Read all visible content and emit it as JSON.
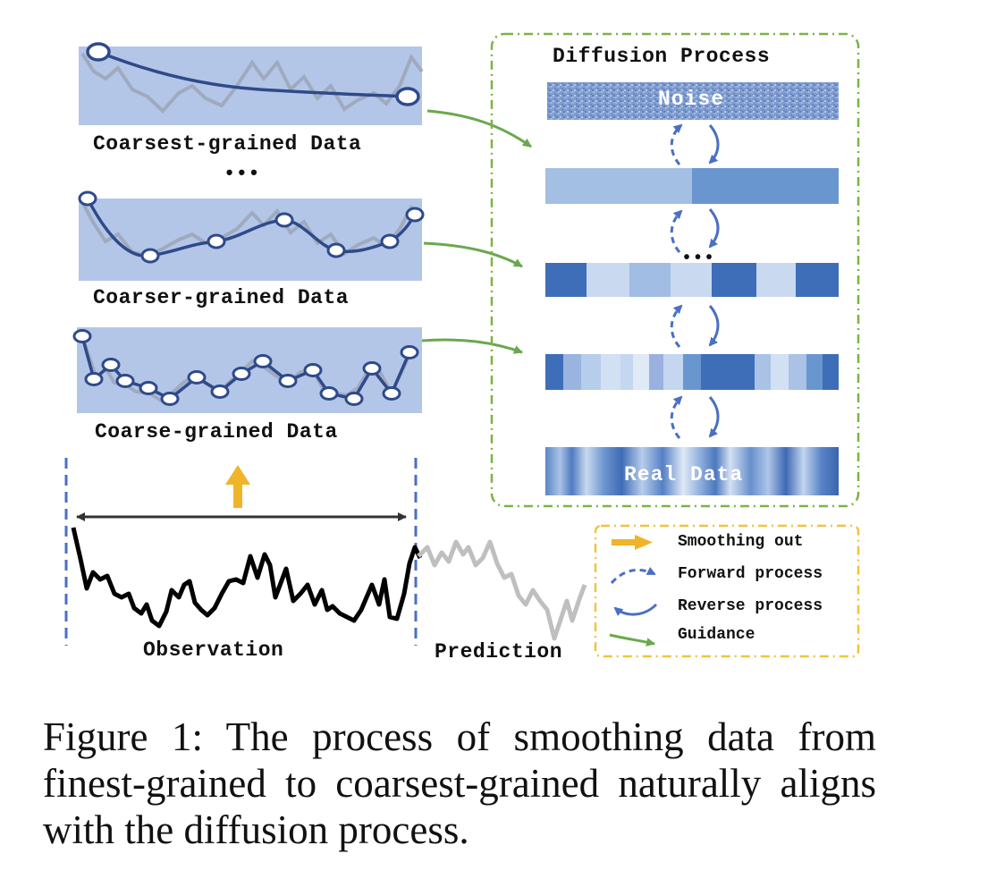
{
  "panels": {
    "coarsest_label": "Coarsest-grained Data",
    "ellipsis_left": "•••",
    "coarser_label": "Coarser-grained Data",
    "coarse_label": "Coarse-grained Data",
    "observation_label": "Observation",
    "prediction_label": "Prediction"
  },
  "diffusion": {
    "title": "Diffusion Process",
    "noise_label": "Noise",
    "ellipsis": "•••",
    "real_label": "Real Data"
  },
  "legend": {
    "items": [
      {
        "label": "Smoothing out",
        "icon": "yellow-arrow-icon",
        "color": "#f0b429"
      },
      {
        "label": "Forward process",
        "icon": "dashed-curved-arrow-icon",
        "color": "#4a6fc4"
      },
      {
        "label": "Reverse process",
        "icon": "curved-arrow-icon",
        "color": "#4a6fc4"
      },
      {
        "label": "Guidance",
        "icon": "green-arrow-icon",
        "color": "#6aa84f"
      }
    ]
  },
  "caption": "Figure 1:  The process of smoothing data from finest-grained to coarsest-grained naturally aligns with the diffusion process.",
  "colors": {
    "panel_bg": "#b4c6e7",
    "curve": "#2e4a8a",
    "guidance": "#6aa84f",
    "smoothing": "#f0b429",
    "process": "#4a6fc4",
    "dash_box_green": "#7cb342",
    "dash_box_yellow": "#f0c43c"
  }
}
